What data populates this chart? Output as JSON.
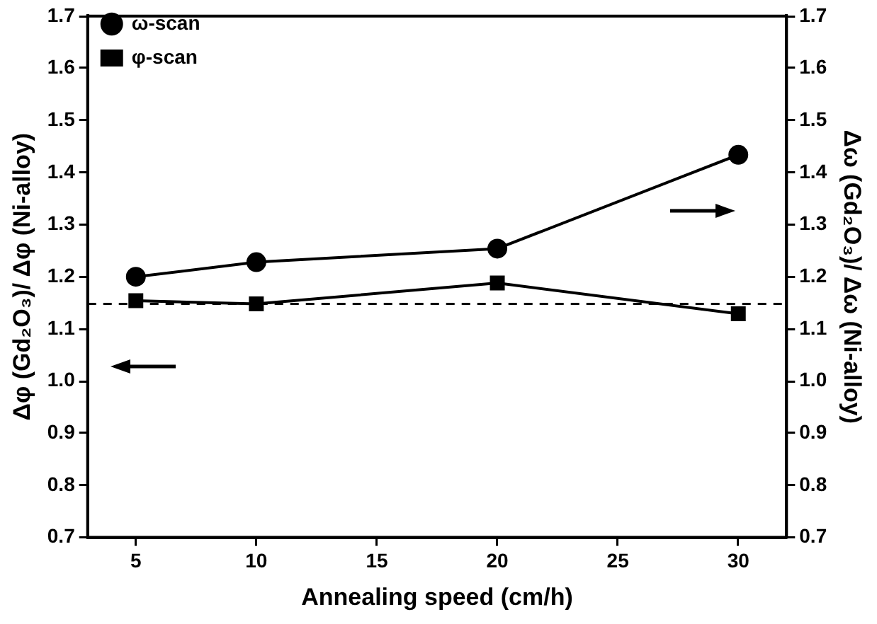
{
  "chart_data": {
    "type": "line",
    "xlabel": "Annealing speed (cm/h)",
    "ylabel": "Δφ (Gd₂O₃)/ Δφ (Ni-alloy)",
    "y2label": "Δω (Gd₂O₃)/ Δω (Ni-alloy)",
    "x": [
      5,
      10,
      20,
      30
    ],
    "series": [
      {
        "name": "ω-scan",
        "color": "#000000",
        "values": [
          1.2,
          1.228,
          1.254,
          1.434
        ],
        "axis": "y2",
        "marker": "circle"
      },
      {
        "name": "φ-scan",
        "color": "#000000",
        "values": [
          1.154,
          1.148,
          1.188,
          1.129
        ],
        "marker": "square"
      }
    ],
    "xlim": [
      3,
      32
    ],
    "xticks": [
      5,
      10,
      15,
      20,
      25,
      30
    ],
    "ylim": [
      0.7,
      1.7
    ],
    "yticks": [
      0.7,
      0.8,
      0.9,
      {
        "value": 1,
        "label": "1.0"
      },
      1.1,
      1.2,
      1.3,
      1.4,
      1.5,
      1.6,
      1.7
    ],
    "y2lim": [
      0.7,
      1.7
    ],
    "y2ticks": [
      0.7,
      0.8,
      0.9,
      {
        "value": 1,
        "label": "1.0"
      },
      1.1,
      1.2,
      1.3,
      1.4,
      1.5,
      1.6,
      1.7
    ],
    "ref_lines": [
      {
        "axis": "y",
        "value": 1.148,
        "line_style": "dashed",
        "color": "#000000"
      }
    ],
    "legend": "top left",
    "grid": false,
    "line_style": "solid"
  }
}
